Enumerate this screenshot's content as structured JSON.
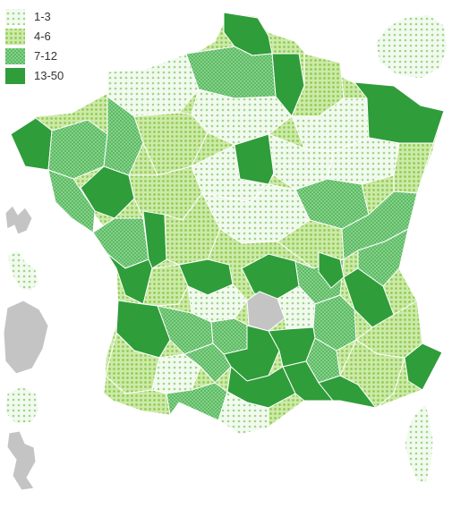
{
  "legend": {
    "items": [
      {
        "label": "1-3",
        "color": "#e3f3de",
        "pattern": "pat-1"
      },
      {
        "label": "4-6",
        "color": "#b5e08d",
        "pattern": "pat-2"
      },
      {
        "label": "7-12",
        "color": "#74c878",
        "pattern": "pat-3"
      },
      {
        "label": "13-50",
        "color": "#2f9d3a",
        "pattern": "pat-4"
      }
    ]
  },
  "colors": {
    "no_data": "#c4c4c4",
    "border": "#ffffff",
    "class_1": "#e3f3de",
    "class_2": "#b5e08d",
    "class_3": "#74c878",
    "class_4": "#2f9d3a"
  }
}
